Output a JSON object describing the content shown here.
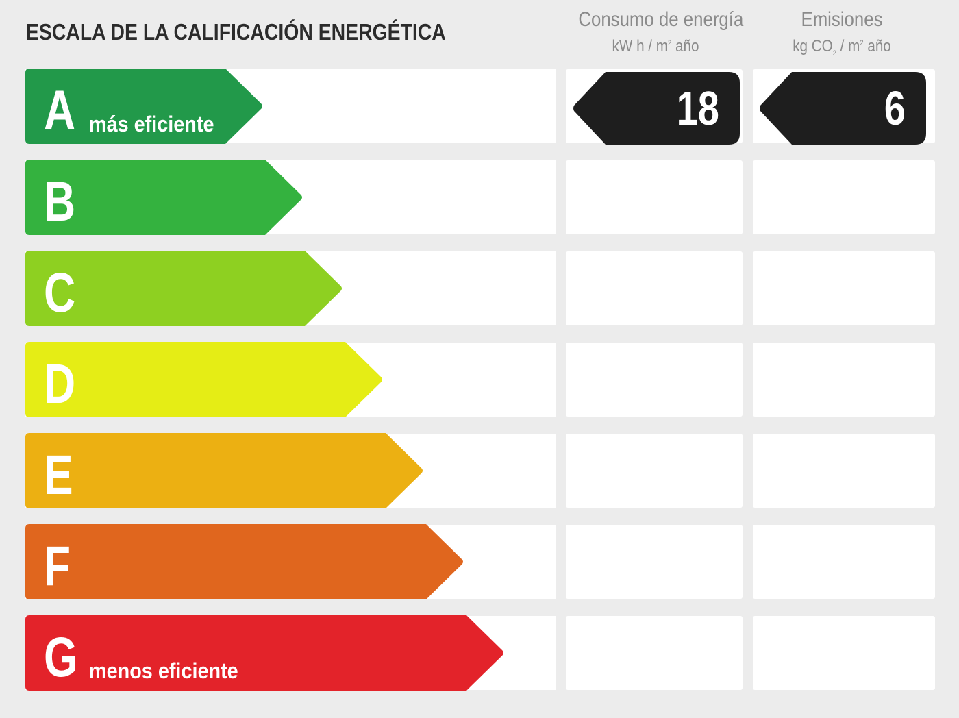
{
  "title": "ESCALA DE LA CALIFICACIÓN ENERGÉTICA",
  "columns": {
    "energy": {
      "header": "Consumo de energía",
      "unit_a": "kW h / m",
      "unit_b": " año",
      "unit_sup": "2"
    },
    "emissions": {
      "header": "Emisiones",
      "unit_a": "kg CO",
      "unit_sub": "2",
      "unit_b": " / m",
      "unit_sup": "2",
      "unit_c": " año"
    }
  },
  "rows": [
    {
      "letter": "A",
      "sublabel": "más eficiente",
      "color": "#22994a"
    },
    {
      "letter": "B",
      "sublabel": "",
      "color": "#34b23f"
    },
    {
      "letter": "C",
      "sublabel": "",
      "color": "#8ed021"
    },
    {
      "letter": "D",
      "sublabel": "",
      "color": "#e5ed15"
    },
    {
      "letter": "E",
      "sublabel": "",
      "color": "#ecb012"
    },
    {
      "letter": "F",
      "sublabel": "",
      "color": "#e0661e"
    },
    {
      "letter": "G",
      "sublabel": "menos eficiente",
      "color": "#e3232a"
    }
  ],
  "rating": {
    "class": "A",
    "energy_value": "18",
    "emissions_value": "6",
    "badge_color": "#1e1e1e"
  }
}
